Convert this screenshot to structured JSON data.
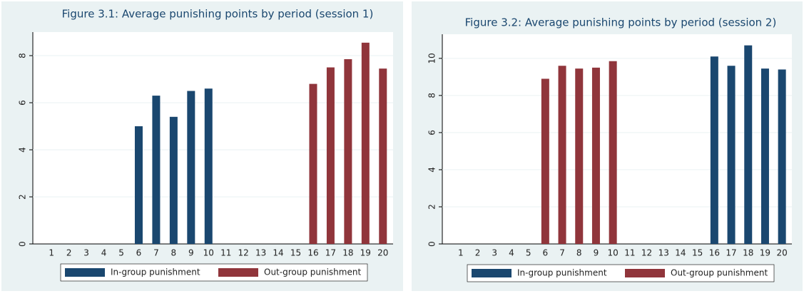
{
  "chart_data": [
    {
      "type": "bar",
      "title": "Figure 3.1: Average punishing points by period (session 1)",
      "categories": [
        "1",
        "2",
        "3",
        "4",
        "5",
        "6",
        "7",
        "8",
        "9",
        "10",
        "11",
        "12",
        "13",
        "14",
        "15",
        "16",
        "17",
        "18",
        "19",
        "20"
      ],
      "series": [
        {
          "name": "In-group punishment",
          "color": "#1a476f",
          "values": [
            null,
            null,
            null,
            null,
            null,
            5.0,
            6.3,
            5.4,
            6.5,
            6.6,
            null,
            null,
            null,
            null,
            null,
            null,
            null,
            null,
            null,
            null
          ]
        },
        {
          "name": "Out-group punishment",
          "color": "#90353b",
          "values": [
            null,
            null,
            null,
            null,
            null,
            null,
            null,
            null,
            null,
            null,
            null,
            null,
            null,
            null,
            null,
            6.8,
            7.5,
            7.85,
            8.55,
            7.45
          ]
        }
      ],
      "ylim": [
        0,
        9
      ],
      "yticks": [
        0,
        2,
        4,
        6,
        8
      ],
      "grid": true
    },
    {
      "type": "bar",
      "title": "Figure 3.2: Average punishing points by period (session 2)",
      "categories": [
        "1",
        "2",
        "3",
        "4",
        "5",
        "6",
        "7",
        "8",
        "9",
        "10",
        "11",
        "12",
        "13",
        "14",
        "15",
        "16",
        "17",
        "18",
        "19",
        "20"
      ],
      "series": [
        {
          "name": "In-group punishment",
          "color": "#1a476f",
          "values": [
            null,
            null,
            null,
            null,
            null,
            null,
            null,
            null,
            null,
            null,
            null,
            null,
            null,
            null,
            null,
            10.1,
            9.6,
            10.7,
            9.45,
            9.4
          ]
        },
        {
          "name": "Out-group punishment",
          "color": "#90353b",
          "values": [
            null,
            null,
            null,
            null,
            null,
            8.9,
            9.6,
            9.45,
            9.5,
            9.85,
            null,
            null,
            null,
            null,
            null,
            null,
            null,
            null,
            null,
            null
          ]
        }
      ],
      "ylim": [
        0,
        11.3
      ],
      "yticks": [
        0,
        2,
        4,
        6,
        8,
        10
      ],
      "grid": true
    }
  ]
}
